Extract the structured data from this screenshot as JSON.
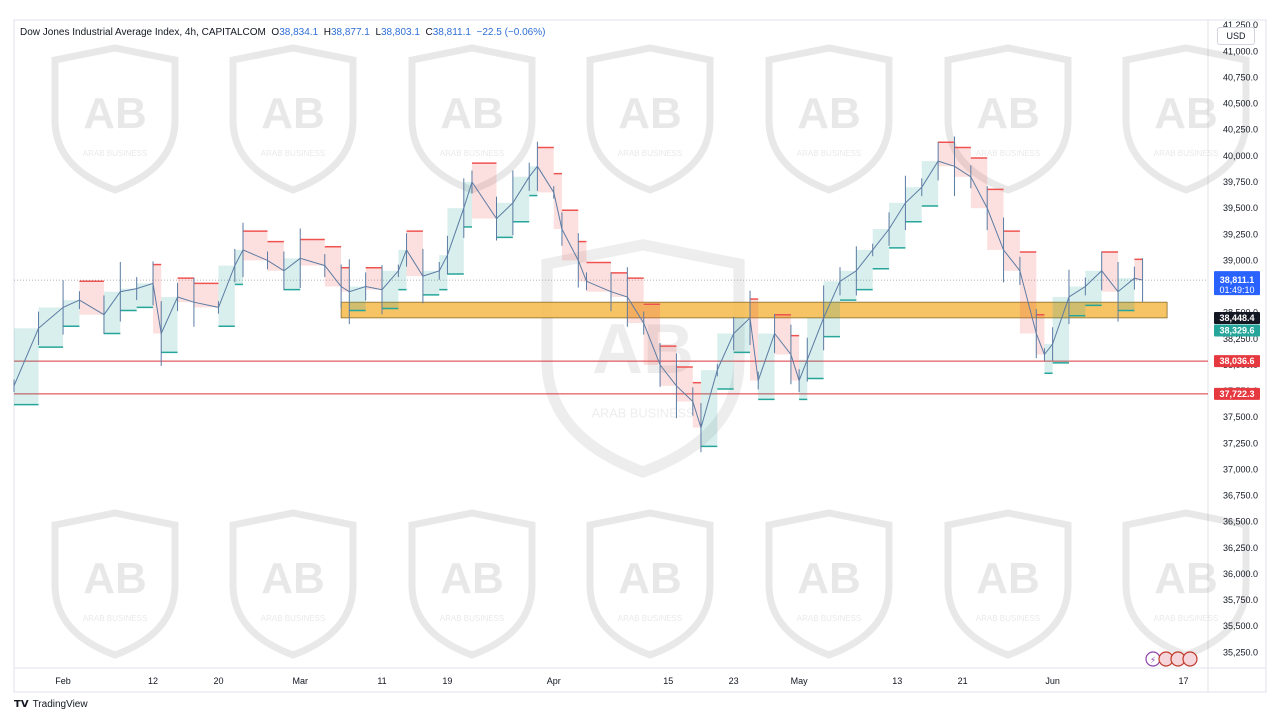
{
  "legend": {
    "symbol": "Dow Jones Industrial Average Index, 4h, CAPITALCOM",
    "open_label": "O",
    "open": "38,834.1",
    "high_label": "H",
    "high": "38,877.1",
    "low_label": "L",
    "low": "38,803.1",
    "close_label": "C",
    "close": "38,811.1",
    "change": "−22.5 (−0.06%)"
  },
  "currency": "USD",
  "brand": {
    "logo": "TV",
    "name": "TradingView"
  },
  "watermark": {
    "text": "ARAB BUSINESS"
  },
  "colors": {
    "up": "#26a69a",
    "down": "#ef5350",
    "candle": "#5b7ba3",
    "zone_fill": "#f5b84a",
    "support_line": "#d9343a",
    "last_price": "#2962ff"
  },
  "chart_data": {
    "type": "line",
    "title": "Dow Jones Industrial Average Index, 4h, CAPITALCOM",
    "xlabel": "",
    "ylabel": "",
    "ylim": [
      35100,
      41300
    ],
    "yticks": [
      "41,250.0",
      "41,000.0",
      "40,750.0",
      "40,500.0",
      "40,250.0",
      "40,000.0",
      "39,750.0",
      "39,500.0",
      "39,250.0",
      "39,000.0",
      "38,750.0",
      "38,500.0",
      "38,250.0",
      "38,000.0",
      "37,750.0",
      "37,500.0",
      "37,250.0",
      "37,000.0",
      "36,750.0",
      "36,500.0",
      "36,250.0",
      "36,000.0",
      "35,750.0",
      "35,500.0",
      "35,250.0"
    ],
    "ytick_values": [
      41250,
      41000,
      40750,
      40500,
      40250,
      40000,
      39750,
      39500,
      39250,
      39000,
      38750,
      38500,
      38250,
      38000,
      37750,
      37500,
      37250,
      37000,
      36750,
      36500,
      36250,
      36000,
      35750,
      35500,
      35250
    ],
    "xticks": [
      {
        "label": "Feb",
        "date": "2024-02-01"
      },
      {
        "label": "12",
        "date": "2024-02-12"
      },
      {
        "label": "20",
        "date": "2024-02-20"
      },
      {
        "label": "Mar",
        "date": "2024-03-01"
      },
      {
        "label": "11",
        "date": "2024-03-11"
      },
      {
        "label": "19",
        "date": "2024-03-19"
      },
      {
        "label": "Apr",
        "date": "2024-04-01"
      },
      {
        "label": "15",
        "date": "2024-04-15"
      },
      {
        "label": "23",
        "date": "2024-04-23"
      },
      {
        "label": "May",
        "date": "2024-05-01"
      },
      {
        "label": "13",
        "date": "2024-05-13"
      },
      {
        "label": "21",
        "date": "2024-05-21"
      },
      {
        "label": "Jun",
        "date": "2024-06-01"
      },
      {
        "label": "17",
        "date": "2024-06-17"
      }
    ],
    "xlim": [
      "2024-01-26",
      "2024-06-20"
    ],
    "series": [
      {
        "values_kind": "close",
        "points": [
          [
            "2024-01-26",
            37800
          ],
          [
            "2024-01-29",
            38350
          ],
          [
            "2024-02-01",
            38550
          ],
          [
            "2024-02-03",
            38620
          ],
          [
            "2024-02-06",
            38480
          ],
          [
            "2024-02-08",
            38700
          ],
          [
            "2024-02-10",
            38730
          ],
          [
            "2024-02-12",
            38780
          ],
          [
            "2024-02-13",
            38300
          ],
          [
            "2024-02-15",
            38650
          ],
          [
            "2024-02-17",
            38600
          ],
          [
            "2024-02-20",
            38550
          ],
          [
            "2024-02-22",
            38950
          ],
          [
            "2024-02-23",
            39100
          ],
          [
            "2024-02-26",
            39000
          ],
          [
            "2024-02-28",
            38900
          ],
          [
            "2024-03-01",
            39020
          ],
          [
            "2024-03-04",
            38950
          ],
          [
            "2024-03-06",
            38750
          ],
          [
            "2024-03-07",
            38700
          ],
          [
            "2024-03-09",
            38750
          ],
          [
            "2024-03-11",
            38720
          ],
          [
            "2024-03-13",
            38900
          ],
          [
            "2024-03-14",
            39100
          ],
          [
            "2024-03-16",
            38850
          ],
          [
            "2024-03-18",
            38900
          ],
          [
            "2024-03-19",
            39050
          ],
          [
            "2024-03-21",
            39500
          ],
          [
            "2024-03-22",
            39750
          ],
          [
            "2024-03-25",
            39400
          ],
          [
            "2024-03-27",
            39550
          ],
          [
            "2024-03-29",
            39800
          ],
          [
            "2024-03-30",
            39900
          ],
          [
            "2024-04-01",
            39650
          ],
          [
            "2024-04-02",
            39300
          ],
          [
            "2024-04-04",
            39000
          ],
          [
            "2024-04-05",
            38800
          ],
          [
            "2024-04-08",
            38700
          ],
          [
            "2024-04-10",
            38650
          ],
          [
            "2024-04-12",
            38400
          ],
          [
            "2024-04-14",
            38000
          ],
          [
            "2024-04-16",
            37800
          ],
          [
            "2024-04-18",
            37650
          ],
          [
            "2024-04-19",
            37400
          ],
          [
            "2024-04-21",
            37950
          ],
          [
            "2024-04-23",
            38300
          ],
          [
            "2024-04-25",
            38450
          ],
          [
            "2024-04-26",
            37850
          ],
          [
            "2024-04-28",
            38300
          ],
          [
            "2024-04-30",
            38100
          ],
          [
            "2024-05-01",
            37850
          ],
          [
            "2024-05-02",
            38050
          ],
          [
            "2024-05-04",
            38450
          ],
          [
            "2024-05-06",
            38800
          ],
          [
            "2024-05-08",
            38900
          ],
          [
            "2024-05-10",
            39100
          ],
          [
            "2024-05-12",
            39300
          ],
          [
            "2024-05-14",
            39550
          ],
          [
            "2024-05-16",
            39700
          ],
          [
            "2024-05-18",
            39950
          ],
          [
            "2024-05-20",
            39900
          ],
          [
            "2024-05-22",
            39800
          ],
          [
            "2024-05-24",
            39500
          ],
          [
            "2024-05-26",
            39100
          ],
          [
            "2024-05-28",
            38900
          ],
          [
            "2024-05-30",
            38300
          ],
          [
            "2024-05-31",
            38100
          ],
          [
            "2024-06-01",
            38200
          ],
          [
            "2024-06-03",
            38650
          ],
          [
            "2024-06-05",
            38750
          ],
          [
            "2024-06-07",
            38900
          ],
          [
            "2024-06-09",
            38700
          ],
          [
            "2024-06-11",
            38830
          ],
          [
            "2024-06-12",
            38811
          ]
        ]
      }
    ],
    "annotations": {
      "zone": {
        "from": 38450,
        "to": 38600,
        "start": "2024-03-06",
        "end": "2024-06-15"
      },
      "hlines": [
        {
          "value": 38036.6,
          "label": "38,036.6",
          "color": "#d9343a"
        },
        {
          "value": 37722.3,
          "label": "37,722.3",
          "color": "#d9343a"
        }
      ],
      "last_price": {
        "value": 38811.1,
        "label": "38,811.1",
        "countdown": "01:49:10"
      },
      "level_labels": [
        {
          "value": 38448.4,
          "label": "38,448.4",
          "color": "#131722"
        },
        {
          "value": 38329.6,
          "label": "38,329.6",
          "color": "#26a69a"
        }
      ]
    },
    "grid": false,
    "legend": "top-left"
  }
}
